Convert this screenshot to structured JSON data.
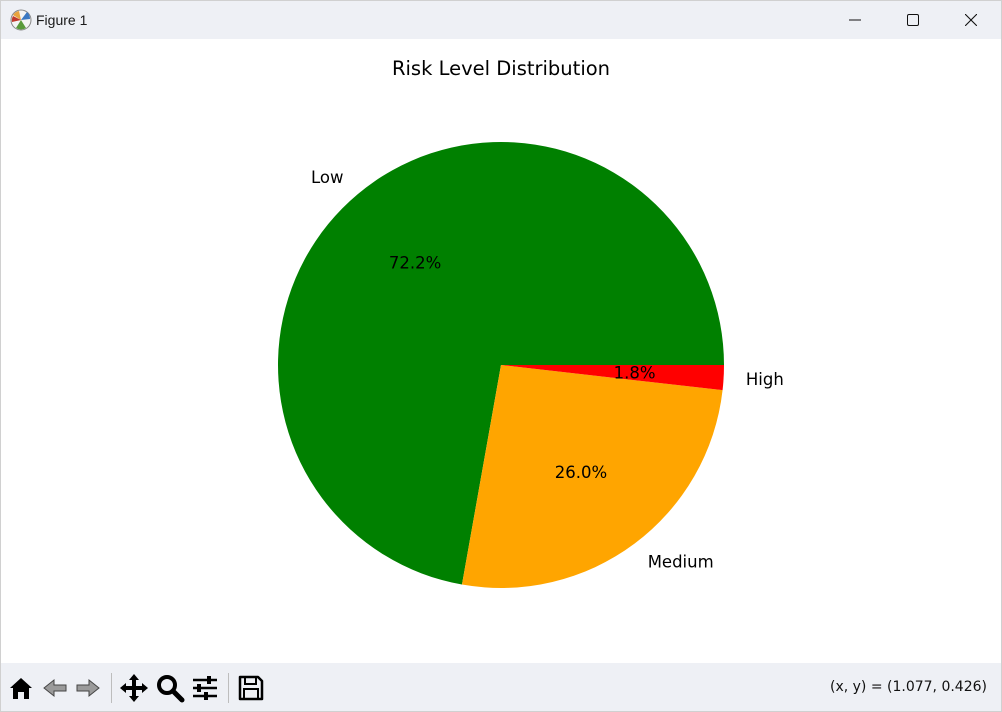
{
  "window": {
    "title": "Figure 1"
  },
  "status": {
    "coords": "(x, y) = (1.077, 0.426)"
  },
  "icons": {
    "app": "matplotlib-icon",
    "minimize": "minimize-icon",
    "maximize": "maximize-icon",
    "close": "close-icon",
    "home": "home-icon",
    "back": "back-arrow-icon",
    "forward": "forward-arrow-icon",
    "pan": "pan-move-icon",
    "zoom": "zoom-magnifier-icon",
    "configure": "configure-sliders-icon",
    "save": "save-floppy-icon"
  },
  "chart_data": {
    "type": "pie",
    "title": "Risk Level Distribution",
    "start_angle_deg": 0,
    "direction": "counterclockwise",
    "slices": [
      {
        "label": "Low",
        "value": 72.2,
        "pct_label": "72.2%",
        "color": "#008000"
      },
      {
        "label": "Medium",
        "value": 26.0,
        "pct_label": "26.0%",
        "color": "#ffa500"
      },
      {
        "label": "High",
        "value": 1.8,
        "pct_label": "1.8%",
        "color": "#ff0000"
      }
    ]
  }
}
